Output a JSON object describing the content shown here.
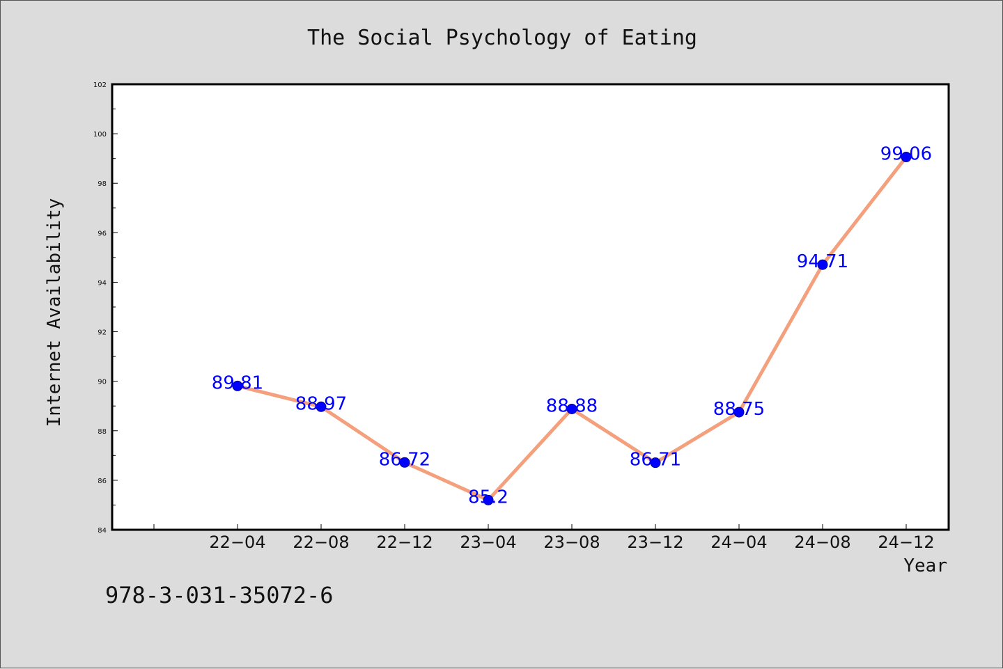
{
  "chart_data": {
    "type": "line",
    "title": "The Social Psychology of Eating",
    "xlabel": "Year",
    "ylabel": "Internet Availability",
    "categories": [
      "22-04",
      "22-08",
      "22-12",
      "23-04",
      "23-08",
      "23-12",
      "24-04",
      "24-08",
      "24-12"
    ],
    "x_tick_labels": [
      "22−04",
      "22−08",
      "22−12",
      "23−04",
      "23−08",
      "23−12",
      "24−04",
      "24−08",
      "24−12"
    ],
    "values": [
      89.81,
      88.97,
      86.72,
      85.2,
      88.88,
      86.71,
      88.75,
      94.71,
      99.06
    ],
    "data_labels": [
      "89.81",
      "88.97",
      "86.72",
      "85.2",
      "88.88",
      "86.71",
      "88.75",
      "94.71",
      "99.06"
    ],
    "ylim": [
      84,
      102
    ],
    "y_ticks": [
      84,
      86,
      88,
      90,
      92,
      94,
      96,
      98,
      100,
      102
    ],
    "grid": false,
    "legend": "none",
    "colors": {
      "line": "#f4a07c",
      "marker": "#0000ff",
      "label": "#0000ff",
      "plot_bg": "#ffffff",
      "page_bg": "#dcdcdc"
    }
  },
  "footer": {
    "isbn": "978-3-031-35072-6"
  }
}
